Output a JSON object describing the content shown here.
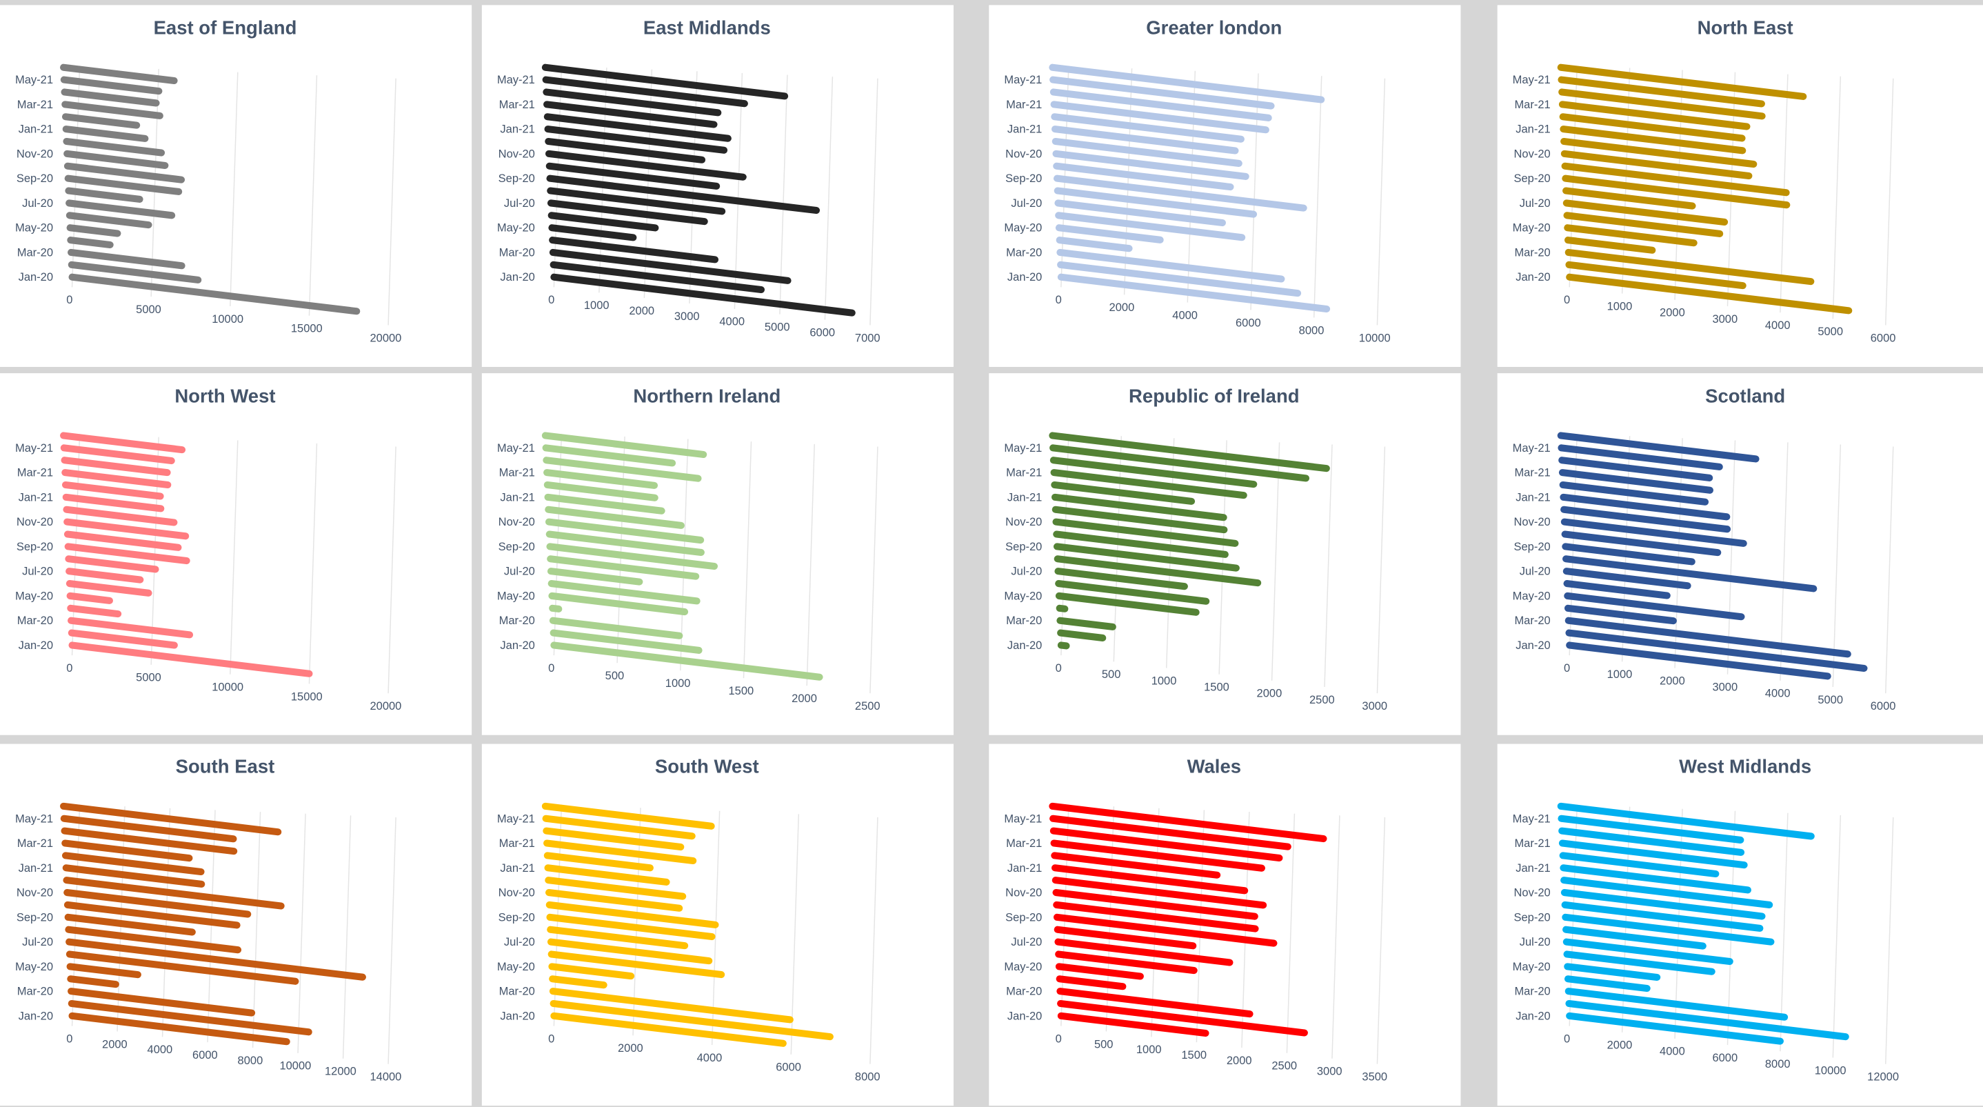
{
  "chart_data": [
    {
      "type": "bar",
      "horizontal": true,
      "title": "East of England",
      "color": "#7f7f7f",
      "categories": [
        "Jan-20",
        null,
        "Mar-20",
        null,
        "May-20",
        null,
        "Jul-20",
        null,
        "Sep-20",
        null,
        "Nov-20",
        null,
        "Jan-21",
        null,
        "Mar-21",
        null,
        "May-21",
        null
      ],
      "values": [
        18000,
        8000,
        7000,
        2500,
        3000,
        5000,
        6500,
        4500,
        7000,
        7200,
        6200,
        6000,
        5000,
        4500,
        6000,
        5800,
        6000,
        7000
      ],
      "xlim": [
        0,
        20000
      ],
      "xticks": [
        0,
        5000,
        10000,
        15000,
        20000
      ]
    },
    {
      "type": "bar",
      "horizontal": true,
      "title": "East Midlands",
      "color": "#262626",
      "categories": [
        "Jan-20",
        null,
        "Mar-20",
        null,
        "May-20",
        null,
        "Jul-20",
        null,
        "Sep-20",
        null,
        "Nov-20",
        null,
        "Jan-21",
        null,
        "Mar-21",
        null,
        "May-21",
        null
      ],
      "values": [
        6600,
        4600,
        5200,
        3600,
        1800,
        2300,
        3400,
        3800,
        5900,
        3700,
        4300,
        3400,
        3900,
        4000,
        3700,
        3800,
        4400,
        5300
      ],
      "xlim": [
        0,
        7000
      ],
      "xticks": [
        0,
        1000,
        2000,
        3000,
        4000,
        5000,
        6000,
        7000
      ]
    },
    {
      "type": "bar",
      "horizontal": true,
      "title": "Greater london",
      "color": "#b4c7e7",
      "categories": [
        "Jan-20",
        null,
        "Mar-20",
        null,
        "May-20",
        null,
        "Jul-20",
        null,
        "Sep-20",
        null,
        "Nov-20",
        null,
        "Jan-21",
        null,
        "Mar-21",
        null,
        "May-21",
        null
      ],
      "values": [
        8400,
        7500,
        7000,
        2200,
        3200,
        5800,
        5200,
        6200,
        7800,
        5500,
        6000,
        5800,
        5700,
        5900,
        6700,
        6800,
        6900,
        8500
      ],
      "xlim": [
        0,
        10000
      ],
      "xticks": [
        0,
        2000,
        4000,
        6000,
        8000,
        10000
      ]
    },
    {
      "type": "bar",
      "horizontal": true,
      "title": "North East",
      "color": "#bf9000",
      "categories": [
        "Jan-20",
        null,
        "Mar-20",
        null,
        "May-20",
        null,
        "Jul-20",
        null,
        "Sep-20",
        null,
        "Nov-20",
        null,
        "Jan-21",
        null,
        "Mar-21",
        null,
        "May-21",
        null
      ],
      "values": [
        5300,
        3300,
        4600,
        1600,
        2400,
        2900,
        3000,
        2400,
        4200,
        4200,
        3500,
        3600,
        3400,
        3400,
        3500,
        3800,
        3800,
        4600
      ],
      "xlim": [
        0,
        6000
      ],
      "xticks": [
        0,
        1000,
        2000,
        3000,
        4000,
        5000,
        6000
      ]
    },
    {
      "type": "bar",
      "horizontal": true,
      "title": "North West",
      "color": "#ff7c80",
      "categories": [
        "Jan-20",
        null,
        "Mar-20",
        null,
        "May-20",
        null,
        "Jul-20",
        null,
        "Sep-20",
        null,
        "Nov-20",
        null,
        "Jan-21",
        null,
        "Mar-21",
        null,
        "May-21",
        null
      ],
      "values": [
        15000,
        6500,
        7500,
        3000,
        2500,
        5000,
        4500,
        5500,
        7500,
        7000,
        7500,
        6800,
        6000,
        6000,
        6500,
        6500,
        6800,
        7500
      ],
      "xlim": [
        0,
        20000
      ],
      "xticks": [
        0,
        5000,
        10000,
        15000,
        20000
      ]
    },
    {
      "type": "bar",
      "horizontal": true,
      "title": "Northern Ireland",
      "color": "#a9d18e",
      "categories": [
        "Jan-20",
        null,
        "Mar-20",
        null,
        "May-20",
        null,
        "Jul-20",
        null,
        "Sep-20",
        null,
        "Nov-20",
        null,
        "Jan-21",
        null,
        "Mar-21",
        null,
        "May-21",
        null
      ],
      "values": [
        2100,
        1150,
        1000,
        50,
        1050,
        1150,
        700,
        1150,
        1300,
        1200,
        1200,
        1050,
        900,
        850,
        850,
        1200,
        1000,
        1250
      ],
      "xlim": [
        0,
        2500
      ],
      "xticks": [
        0,
        500,
        1000,
        1500,
        2000,
        2500
      ]
    },
    {
      "type": "bar",
      "horizontal": true,
      "title": "Republic of Ireland",
      "color": "#548235",
      "categories": [
        "Jan-20",
        null,
        "Mar-20",
        null,
        "May-20",
        null,
        "Jul-20",
        null,
        "Sep-20",
        null,
        "Nov-20",
        null,
        "Jan-21",
        null,
        "Mar-21",
        null,
        "May-21",
        null
      ],
      "values": [
        50,
        400,
        500,
        50,
        1300,
        1400,
        1200,
        1900,
        1700,
        1600,
        1700,
        1600,
        1600,
        1300,
        1800,
        1900,
        2400,
        2600
      ],
      "xlim": [
        0,
        3000
      ],
      "xticks": [
        0,
        500,
        1000,
        1500,
        2000,
        2500,
        3000
      ]
    },
    {
      "type": "bar",
      "horizontal": true,
      "title": "Scotland",
      "color": "#2f5597",
      "categories": [
        "Jan-20",
        null,
        "Mar-20",
        null,
        "May-20",
        null,
        "Jul-20",
        null,
        "Sep-20",
        null,
        "Nov-20",
        null,
        "Jan-21",
        null,
        "Mar-21",
        null,
        "May-21",
        null
      ],
      "values": [
        4900,
        5600,
        5300,
        2000,
        3300,
        1900,
        2300,
        4700,
        2400,
        2900,
        3400,
        3100,
        3100,
        2700,
        2800,
        2800,
        3000,
        3700
      ],
      "xlim": [
        0,
        6000
      ],
      "xticks": [
        0,
        1000,
        2000,
        3000,
        4000,
        5000,
        6000
      ]
    },
    {
      "type": "bar",
      "horizontal": true,
      "title": "South East",
      "color": "#c55a11",
      "categories": [
        "Jan-20",
        null,
        "Mar-20",
        null,
        "May-20",
        null,
        "Jul-20",
        null,
        "Sep-20",
        null,
        "Nov-20",
        null,
        "Jan-21",
        null,
        "Mar-21",
        null,
        "May-21",
        null
      ],
      "values": [
        9500,
        10500,
        8000,
        2000,
        3000,
        10000,
        13000,
        7500,
        5500,
        7500,
        8000,
        9500,
        6000,
        6000,
        5500,
        7500,
        7500,
        9500
      ],
      "xlim": [
        0,
        14000
      ],
      "xticks": [
        0,
        2000,
        4000,
        6000,
        8000,
        10000,
        12000,
        14000
      ]
    },
    {
      "type": "bar",
      "horizontal": true,
      "title": "South West",
      "color": "#ffc000",
      "categories": [
        "Jan-20",
        null,
        "Mar-20",
        null,
        "May-20",
        null,
        "Jul-20",
        null,
        "Sep-20",
        null,
        "Nov-20",
        null,
        "Jan-21",
        null,
        "Mar-21",
        null,
        "May-21",
        null
      ],
      "values": [
        5800,
        7000,
        6000,
        1300,
        2000,
        4300,
        4000,
        3400,
        4100,
        4200,
        3300,
        3400,
        3000,
        2600,
        3700,
        3400,
        3700,
        4200
      ],
      "xlim": [
        0,
        8000
      ],
      "xticks": [
        0,
        2000,
        4000,
        6000,
        8000
      ]
    },
    {
      "type": "bar",
      "horizontal": true,
      "title": "Wales",
      "color": "#ff0000",
      "categories": [
        "Jan-20",
        null,
        "Mar-20",
        null,
        "May-20",
        null,
        "Jul-20",
        null,
        "Sep-20",
        null,
        "Nov-20",
        null,
        "Jan-21",
        null,
        "Mar-21",
        null,
        "May-21",
        null
      ],
      "values": [
        1600,
        2700,
        2100,
        700,
        900,
        1500,
        1900,
        1500,
        2400,
        2200,
        2200,
        2300,
        2100,
        1800,
        2300,
        2500,
        2600,
        3000
      ],
      "xlim": [
        0,
        3500
      ],
      "xticks": [
        0,
        500,
        1000,
        1500,
        2000,
        2500,
        3000,
        3500
      ]
    },
    {
      "type": "bar",
      "horizontal": true,
      "title": "West Midlands",
      "color": "#00b0f0",
      "categories": [
        "Jan-20",
        null,
        "Mar-20",
        null,
        "May-20",
        null,
        "Jul-20",
        null,
        "Sep-20",
        null,
        "Nov-20",
        null,
        "Jan-21",
        null,
        "Mar-21",
        null,
        "May-21",
        null
      ],
      "values": [
        8000,
        10500,
        8200,
        3000,
        3400,
        5500,
        6200,
        5200,
        7800,
        7400,
        7500,
        7800,
        7000,
        5800,
        6900,
        6800,
        6800,
        9500
      ],
      "xlim": [
        0,
        12000
      ],
      "xticks": [
        0,
        2000,
        4000,
        6000,
        8000,
        10000,
        12000
      ]
    }
  ]
}
